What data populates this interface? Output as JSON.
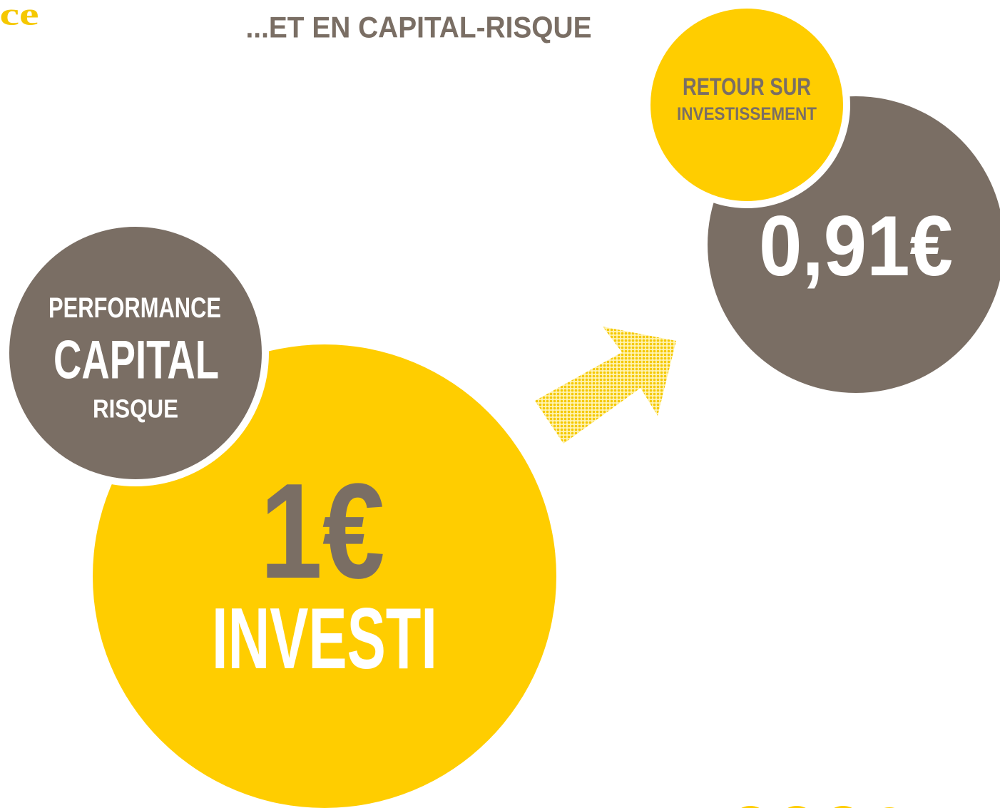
{
  "logo": "ce",
  "title": "...ET EN CAPITAL-RISQUE",
  "return_bubble": {
    "label_line1": "RETOUR SUR",
    "label_line2": "INVESTISSEMENT",
    "amount": "0,91€"
  },
  "performance_bubble": {
    "line1": "PERFORMANCE",
    "line2": "CAPITAL",
    "line3": "RISQUE"
  },
  "invested_bubble": {
    "amount": "1€",
    "label": "INVESTI"
  }
}
